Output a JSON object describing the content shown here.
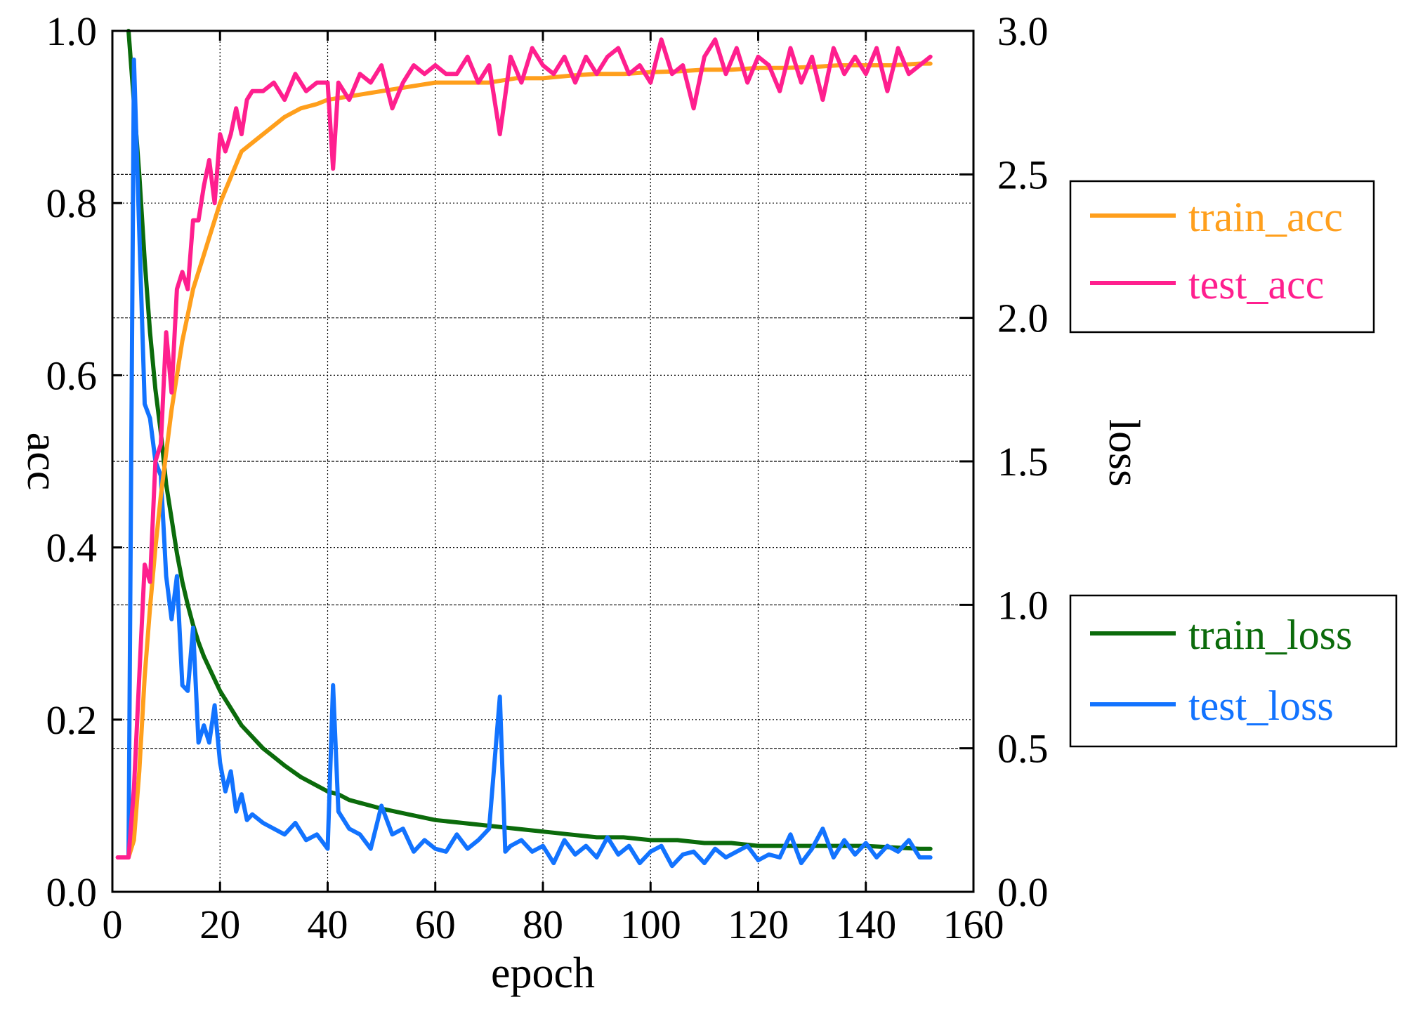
{
  "chart_data": {
    "type": "line",
    "title": "",
    "xlabel": "epoch",
    "ylabel": "acc",
    "y2label": "loss",
    "xlim": [
      0,
      160
    ],
    "ylim": [
      0.0,
      1.0
    ],
    "y2lim": [
      0.0,
      3.0
    ],
    "grid": true,
    "x_ticks": [
      "0",
      "20",
      "40",
      "60",
      "80",
      "100",
      "120",
      "140",
      "160"
    ],
    "y_ticks": [
      "0.0",
      "0.2",
      "0.4",
      "0.6",
      "0.8",
      "1.0"
    ],
    "y2_ticks": [
      "0.0",
      "0.5",
      "1.0",
      "1.5",
      "2.0",
      "2.5",
      "3.0"
    ],
    "legends": [
      {
        "position": "upper-right",
        "entries": [
          "train_acc",
          "test_acc"
        ]
      },
      {
        "position": "lower-right",
        "entries": [
          "train_loss",
          "test_loss"
        ]
      }
    ],
    "series": [
      {
        "name": "train_acc",
        "axis": "left",
        "color": "#ff9f1c",
        "x": [
          1,
          2,
          3,
          4,
          5,
          6,
          7,
          8,
          9,
          10,
          11,
          12,
          13,
          14,
          15,
          16,
          17,
          18,
          19,
          20,
          22,
          24,
          26,
          28,
          30,
          32,
          35,
          38,
          40,
          45,
          50,
          55,
          60,
          65,
          70,
          75,
          80,
          85,
          90,
          95,
          100,
          105,
          110,
          115,
          120,
          125,
          130,
          135,
          140,
          145,
          150,
          152
        ],
        "values": [
          0.04,
          0.04,
          0.04,
          0.06,
          0.14,
          0.25,
          0.33,
          0.4,
          0.46,
          0.51,
          0.56,
          0.6,
          0.64,
          0.67,
          0.7,
          0.72,
          0.74,
          0.76,
          0.78,
          0.8,
          0.83,
          0.86,
          0.87,
          0.88,
          0.89,
          0.9,
          0.91,
          0.915,
          0.92,
          0.925,
          0.93,
          0.935,
          0.94,
          0.94,
          0.94,
          0.945,
          0.945,
          0.948,
          0.95,
          0.95,
          0.952,
          0.953,
          0.955,
          0.955,
          0.957,
          0.957,
          0.958,
          0.96,
          0.96,
          0.96,
          0.962,
          0.962
        ]
      },
      {
        "name": "test_acc",
        "axis": "left",
        "color": "#ff1f8e",
        "x": [
          1,
          2,
          3,
          4,
          5,
          6,
          7,
          8,
          9,
          10,
          11,
          12,
          13,
          14,
          15,
          16,
          17,
          18,
          19,
          20,
          21,
          22,
          23,
          24,
          25,
          26,
          28,
          30,
          32,
          34,
          36,
          38,
          40,
          41,
          42,
          44,
          46,
          48,
          50,
          52,
          54,
          56,
          58,
          60,
          62,
          64,
          66,
          68,
          70,
          72,
          74,
          76,
          78,
          80,
          82,
          84,
          86,
          88,
          90,
          92,
          94,
          96,
          98,
          100,
          102,
          104,
          106,
          108,
          110,
          112,
          114,
          116,
          118,
          120,
          122,
          124,
          126,
          128,
          130,
          132,
          134,
          136,
          138,
          140,
          142,
          144,
          146,
          148,
          150,
          152
        ],
        "values": [
          0.04,
          0.04,
          0.04,
          0.12,
          0.25,
          0.38,
          0.36,
          0.5,
          0.52,
          0.65,
          0.58,
          0.7,
          0.72,
          0.7,
          0.78,
          0.78,
          0.82,
          0.85,
          0.8,
          0.88,
          0.86,
          0.88,
          0.91,
          0.88,
          0.92,
          0.93,
          0.93,
          0.94,
          0.92,
          0.95,
          0.93,
          0.94,
          0.94,
          0.84,
          0.94,
          0.92,
          0.95,
          0.94,
          0.96,
          0.91,
          0.94,
          0.96,
          0.95,
          0.96,
          0.95,
          0.95,
          0.97,
          0.94,
          0.96,
          0.88,
          0.97,
          0.94,
          0.98,
          0.96,
          0.95,
          0.97,
          0.94,
          0.97,
          0.95,
          0.97,
          0.98,
          0.95,
          0.96,
          0.94,
          0.99,
          0.95,
          0.96,
          0.91,
          0.97,
          0.99,
          0.95,
          0.98,
          0.94,
          0.97,
          0.96,
          0.93,
          0.98,
          0.94,
          0.97,
          0.92,
          0.98,
          0.95,
          0.97,
          0.95,
          0.98,
          0.93,
          0.98,
          0.95,
          0.96,
          0.97
        ]
      },
      {
        "name": "train_loss",
        "axis": "right",
        "color": "#0b6b0b",
        "x": [
          3,
          4,
          5,
          6,
          7,
          8,
          9,
          10,
          11,
          12,
          13,
          14,
          15,
          16,
          17,
          18,
          19,
          20,
          22,
          24,
          26,
          28,
          30,
          32,
          35,
          38,
          40,
          42,
          44,
          46,
          48,
          50,
          55,
          60,
          65,
          70,
          75,
          80,
          85,
          90,
          95,
          100,
          105,
          110,
          115,
          120,
          125,
          130,
          135,
          140,
          145,
          150,
          152
        ],
        "values": [
          3.0,
          2.75,
          2.5,
          2.2,
          1.95,
          1.75,
          1.6,
          1.42,
          1.3,
          1.18,
          1.08,
          1.0,
          0.93,
          0.87,
          0.82,
          0.78,
          0.74,
          0.7,
          0.64,
          0.58,
          0.54,
          0.5,
          0.47,
          0.44,
          0.4,
          0.37,
          0.35,
          0.34,
          0.32,
          0.31,
          0.3,
          0.29,
          0.27,
          0.25,
          0.24,
          0.23,
          0.22,
          0.21,
          0.2,
          0.19,
          0.19,
          0.18,
          0.18,
          0.17,
          0.17,
          0.16,
          0.16,
          0.16,
          0.16,
          0.16,
          0.155,
          0.15,
          0.15
        ]
      },
      {
        "name": "test_loss",
        "axis": "right",
        "color": "#1273ff",
        "x": [
          1,
          2,
          3,
          4,
          5,
          6,
          7,
          8,
          9,
          10,
          11,
          12,
          13,
          14,
          15,
          16,
          17,
          18,
          19,
          20,
          21,
          22,
          23,
          24,
          25,
          26,
          28,
          30,
          32,
          34,
          36,
          38,
          40,
          41,
          42,
          44,
          46,
          48,
          50,
          52,
          54,
          56,
          58,
          60,
          62,
          64,
          66,
          68,
          70,
          72,
          73,
          74,
          76,
          78,
          80,
          82,
          84,
          86,
          88,
          90,
          92,
          94,
          96,
          98,
          100,
          102,
          104,
          106,
          108,
          110,
          112,
          114,
          116,
          118,
          120,
          122,
          124,
          126,
          128,
          130,
          132,
          134,
          136,
          138,
          140,
          142,
          144,
          146,
          148,
          150,
          152
        ],
        "values": [
          0.12,
          0.12,
          0.12,
          2.9,
          2.3,
          1.7,
          1.65,
          1.5,
          1.45,
          1.1,
          0.95,
          1.1,
          0.72,
          0.7,
          0.92,
          0.52,
          0.58,
          0.52,
          0.65,
          0.45,
          0.35,
          0.42,
          0.28,
          0.34,
          0.25,
          0.27,
          0.24,
          0.22,
          0.2,
          0.24,
          0.18,
          0.2,
          0.15,
          0.72,
          0.28,
          0.22,
          0.2,
          0.15,
          0.3,
          0.2,
          0.22,
          0.14,
          0.18,
          0.15,
          0.14,
          0.2,
          0.15,
          0.18,
          0.22,
          0.68,
          0.14,
          0.16,
          0.18,
          0.14,
          0.16,
          0.1,
          0.18,
          0.13,
          0.16,
          0.12,
          0.19,
          0.13,
          0.16,
          0.1,
          0.14,
          0.16,
          0.09,
          0.13,
          0.14,
          0.1,
          0.15,
          0.12,
          0.14,
          0.16,
          0.11,
          0.13,
          0.12,
          0.2,
          0.1,
          0.15,
          0.22,
          0.12,
          0.18,
          0.13,
          0.17,
          0.12,
          0.16,
          0.14,
          0.18,
          0.12,
          0.12
        ]
      }
    ]
  }
}
